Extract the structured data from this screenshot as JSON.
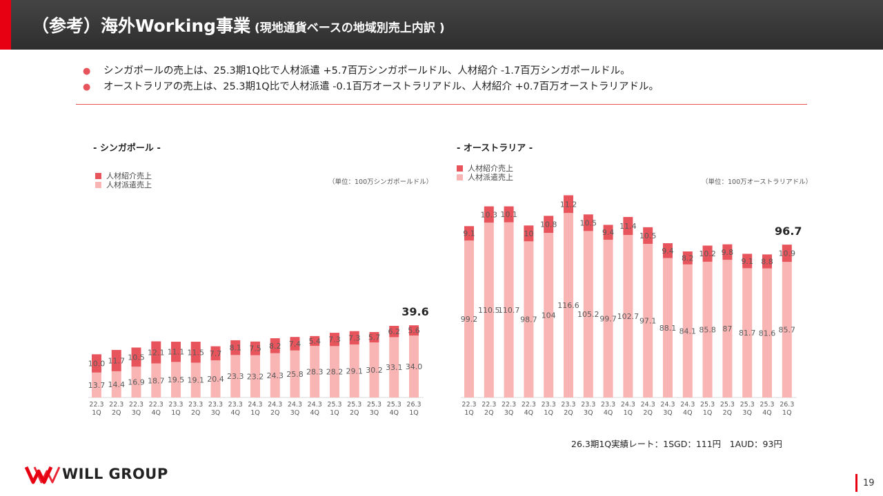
{
  "header": {
    "title_main": "（参考）海外Working事業",
    "title_sub": " (現地通貨ベースの地域別売上内訳 )"
  },
  "bullets": [
    "シンガポールの売上は、25.3期1Q比で人材派遣 +5.7百万シンガポールドル、人材紹介 -1.7百万シンガポールドル。",
    "オーストラリアの売上は、25.3期1Q比で人材派遣  -0.1百万オーストラリアドル、人材紹介 +0.7百万オーストラリアドル。"
  ],
  "bullet_marker": "●",
  "colors": {
    "referral": "#e8545b",
    "dispatch": "#f9b4b4",
    "accent": "#e60012"
  },
  "singapore": {
    "title": "- シンガポール -",
    "unit": "（単位：100万シンガポールドル）",
    "legend": [
      "人材紹介売上",
      "人材派遣売上"
    ],
    "total_label": "39.6"
  },
  "australia": {
    "title": "- オーストラリア -",
    "unit": "（単位：100万オーストラリアドル）",
    "legend": [
      "人材紹介売上",
      "人材派遣売上"
    ],
    "total_label": "96.7"
  },
  "chart_data": [
    {
      "type": "bar",
      "stacked": true,
      "title": "- シンガポール -",
      "categories": [
        "22.3\n1Q",
        "22.3\n2Q",
        "22.3\n3Q",
        "22.3\n4Q",
        "23.3\n1Q",
        "23.3\n2Q",
        "23.3\n3Q",
        "23.3\n4Q",
        "24.3\n1Q",
        "24.3\n2Q",
        "24.3\n3Q",
        "24.3\n4Q",
        "25.3\n1Q",
        "25.3\n2Q",
        "25.3\n3Q",
        "25.3\n4Q",
        "26.3\n1Q"
      ],
      "series": [
        {
          "name": "人材派遣売上",
          "values": [
            13.7,
            14.4,
            16.9,
            18.7,
            19.5,
            19.1,
            20.4,
            23.3,
            23.2,
            24.3,
            25.8,
            28.3,
            28.2,
            29.1,
            30.2,
            33.1,
            34.0
          ],
          "labels": [
            "13.7",
            "14.4",
            "16.9",
            "18.7",
            "19.5",
            "19.1",
            "20.4",
            "23.3",
            "23.2",
            "24.3",
            "25.8",
            "28.3",
            "28.2",
            "29.1",
            "30.2",
            "33.1",
            "34.0"
          ]
        },
        {
          "name": "人材紹介売上",
          "values": [
            10.0,
            11.7,
            10.5,
            12.1,
            11.1,
            11.5,
            7.7,
            8.1,
            7.5,
            8.2,
            7.4,
            5.4,
            7.3,
            7.3,
            5.7,
            6.2,
            5.6
          ],
          "labels": [
            "10.0",
            "11.7",
            "10.5",
            "12.1",
            "11.1",
            "11.5",
            "7.7",
            "8.1",
            "7.5",
            "8.2",
            "7.4",
            "5.4",
            "7.3",
            "7.3",
            "5.7",
            "6.2",
            "5.6"
          ]
        }
      ],
      "total_label_last": "39.6",
      "ylim": [
        0,
        48
      ],
      "unit": "（単位：100万シンガポールドル）"
    },
    {
      "type": "bar",
      "stacked": true,
      "title": "- オーストラリア -",
      "categories": [
        "22.3\n1Q",
        "22.3\n2Q",
        "22.3\n3Q",
        "22.3\n4Q",
        "23.3\n1Q",
        "23.3\n2Q",
        "23.3\n3Q",
        "23.3\n4Q",
        "24.3\n1Q",
        "24.3\n2Q",
        "24.3\n3Q",
        "24.3\n4Q",
        "25.3\n1Q",
        "25.3\n2Q",
        "25.3\n3Q",
        "25.3\n4Q",
        "26.3\n1Q"
      ],
      "series": [
        {
          "name": "人材派遣売上",
          "values": [
            99.2,
            110.5,
            110.7,
            98.7,
            104,
            116.6,
            105.2,
            99.7,
            102.7,
            97.1,
            88.1,
            84.1,
            85.8,
            87,
            81.7,
            81.6,
            85.7
          ],
          "labels": [
            "99.2",
            "110.5",
            "110.7",
            "98.7",
            "104",
            "116.6",
            "105.2",
            "99.7",
            "102.7",
            "97.1",
            "88.1",
            "84.1",
            "85.8",
            "87",
            "81.7",
            "81.6",
            "85.7"
          ]
        },
        {
          "name": "人材紹介売上",
          "values": [
            9.1,
            10.3,
            10.1,
            10,
            10.8,
            11.2,
            10.5,
            9.4,
            11.4,
            10.5,
            9.4,
            8.2,
            10.2,
            9.8,
            9.1,
            8.8,
            10.9
          ],
          "labels": [
            "9.1",
            "10.3",
            "10.1",
            "10",
            "10.8",
            "11.2",
            "10.5",
            "9.4",
            "11.4",
            "10.5",
            "9.4",
            "8.2",
            "10.2",
            "9.8",
            "9.1",
            "8.8",
            "10.9"
          ]
        }
      ],
      "total_label_last": "96.7",
      "ylim": [
        0,
        128
      ],
      "unit": "（単位：100万オーストラリアドル）"
    }
  ],
  "rate_note": "26.3期1Q実績レート：1SGD：111円　1AUD：93円",
  "logo_text": "WILL GROUP",
  "page_number": "19"
}
